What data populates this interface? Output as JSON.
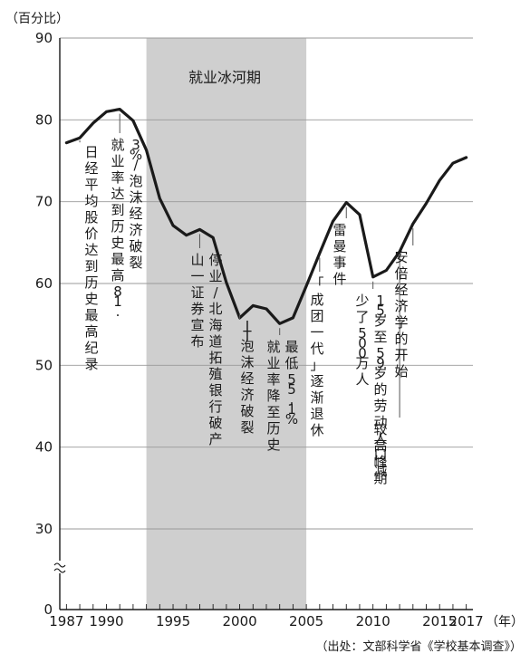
{
  "chart_data": {
    "type": "line",
    "ylabel": "（百分比）",
    "xlabel": "（年）",
    "source": "（出处：文部科学省《学校基本调查》）",
    "ylim": [
      0,
      90
    ],
    "y_ticks": [
      "0",
      "30",
      "40",
      "50",
      "60",
      "70",
      "80",
      "90"
    ],
    "y_break": true,
    "x_ticks": [
      "1987",
      "1990",
      "1995",
      "2000",
      "2005",
      "2010",
      "2015",
      "2017"
    ],
    "grid": true,
    "shaded_period": {
      "label": "就业冰河期",
      "from": 1993,
      "to": 2005
    },
    "series": [
      {
        "x": [
          1987,
          1988,
          1989,
          1990,
          1991,
          1992,
          1993,
          1994,
          1995,
          1996,
          1997,
          1998,
          1999,
          2000,
          2001,
          2002,
          2003,
          2004,
          2005,
          2006,
          2007,
          2008,
          2009,
          2010,
          2011,
          2012,
          2013,
          2014,
          2015,
          2016,
          2017
        ],
        "y": [
          77.2,
          77.8,
          79.6,
          81.0,
          81.3,
          79.9,
          76.3,
          70.4,
          67.1,
          65.9,
          66.6,
          65.6,
          60.1,
          55.8,
          57.3,
          56.9,
          55.1,
          55.8,
          59.7,
          63.7,
          67.6,
          69.9,
          68.4,
          60.8,
          61.6,
          63.9,
          67.3,
          69.8,
          72.6,
          74.7,
          75.4
        ]
      }
    ],
    "annotations": [
      {
        "id": "a1",
        "year": 1988,
        "value": 77.8,
        "text": "日经平均股价达到历史最高纪录"
      },
      {
        "id": "a2",
        "year": 1991,
        "value": 81.3,
        "text": "就业率达到历史最高81.3%/泡沫经济破裂"
      },
      {
        "id": "a3",
        "year": 1997,
        "value": 66.6,
        "text": "山一证券宣布停业/北海道拓殖银行破产"
      },
      {
        "id": "a4",
        "year": 2000,
        "value": 55.8,
        "text": "IT泡沫经济破裂"
      },
      {
        "id": "a5",
        "year": 2003,
        "value": 55.1,
        "text": "就业率降至历史最低55.1%"
      },
      {
        "id": "a6",
        "year": 2006,
        "value": 63.7,
        "text": "「成团一代」逐渐退休"
      },
      {
        "id": "a7",
        "year": 2008,
        "value": 69.9,
        "text": "雷曼事件"
      },
      {
        "id": "a8",
        "year": 2010,
        "value": 60.8,
        "text": "15岁至59岁的劳动人口减少了500万人"
      },
      {
        "id": "a9",
        "year": 2012,
        "value": 63.9,
        "text": "较高峰期"
      },
      {
        "id": "a10",
        "year": 2013,
        "value": 67.3,
        "text": "安倍经济学的开始"
      }
    ]
  }
}
